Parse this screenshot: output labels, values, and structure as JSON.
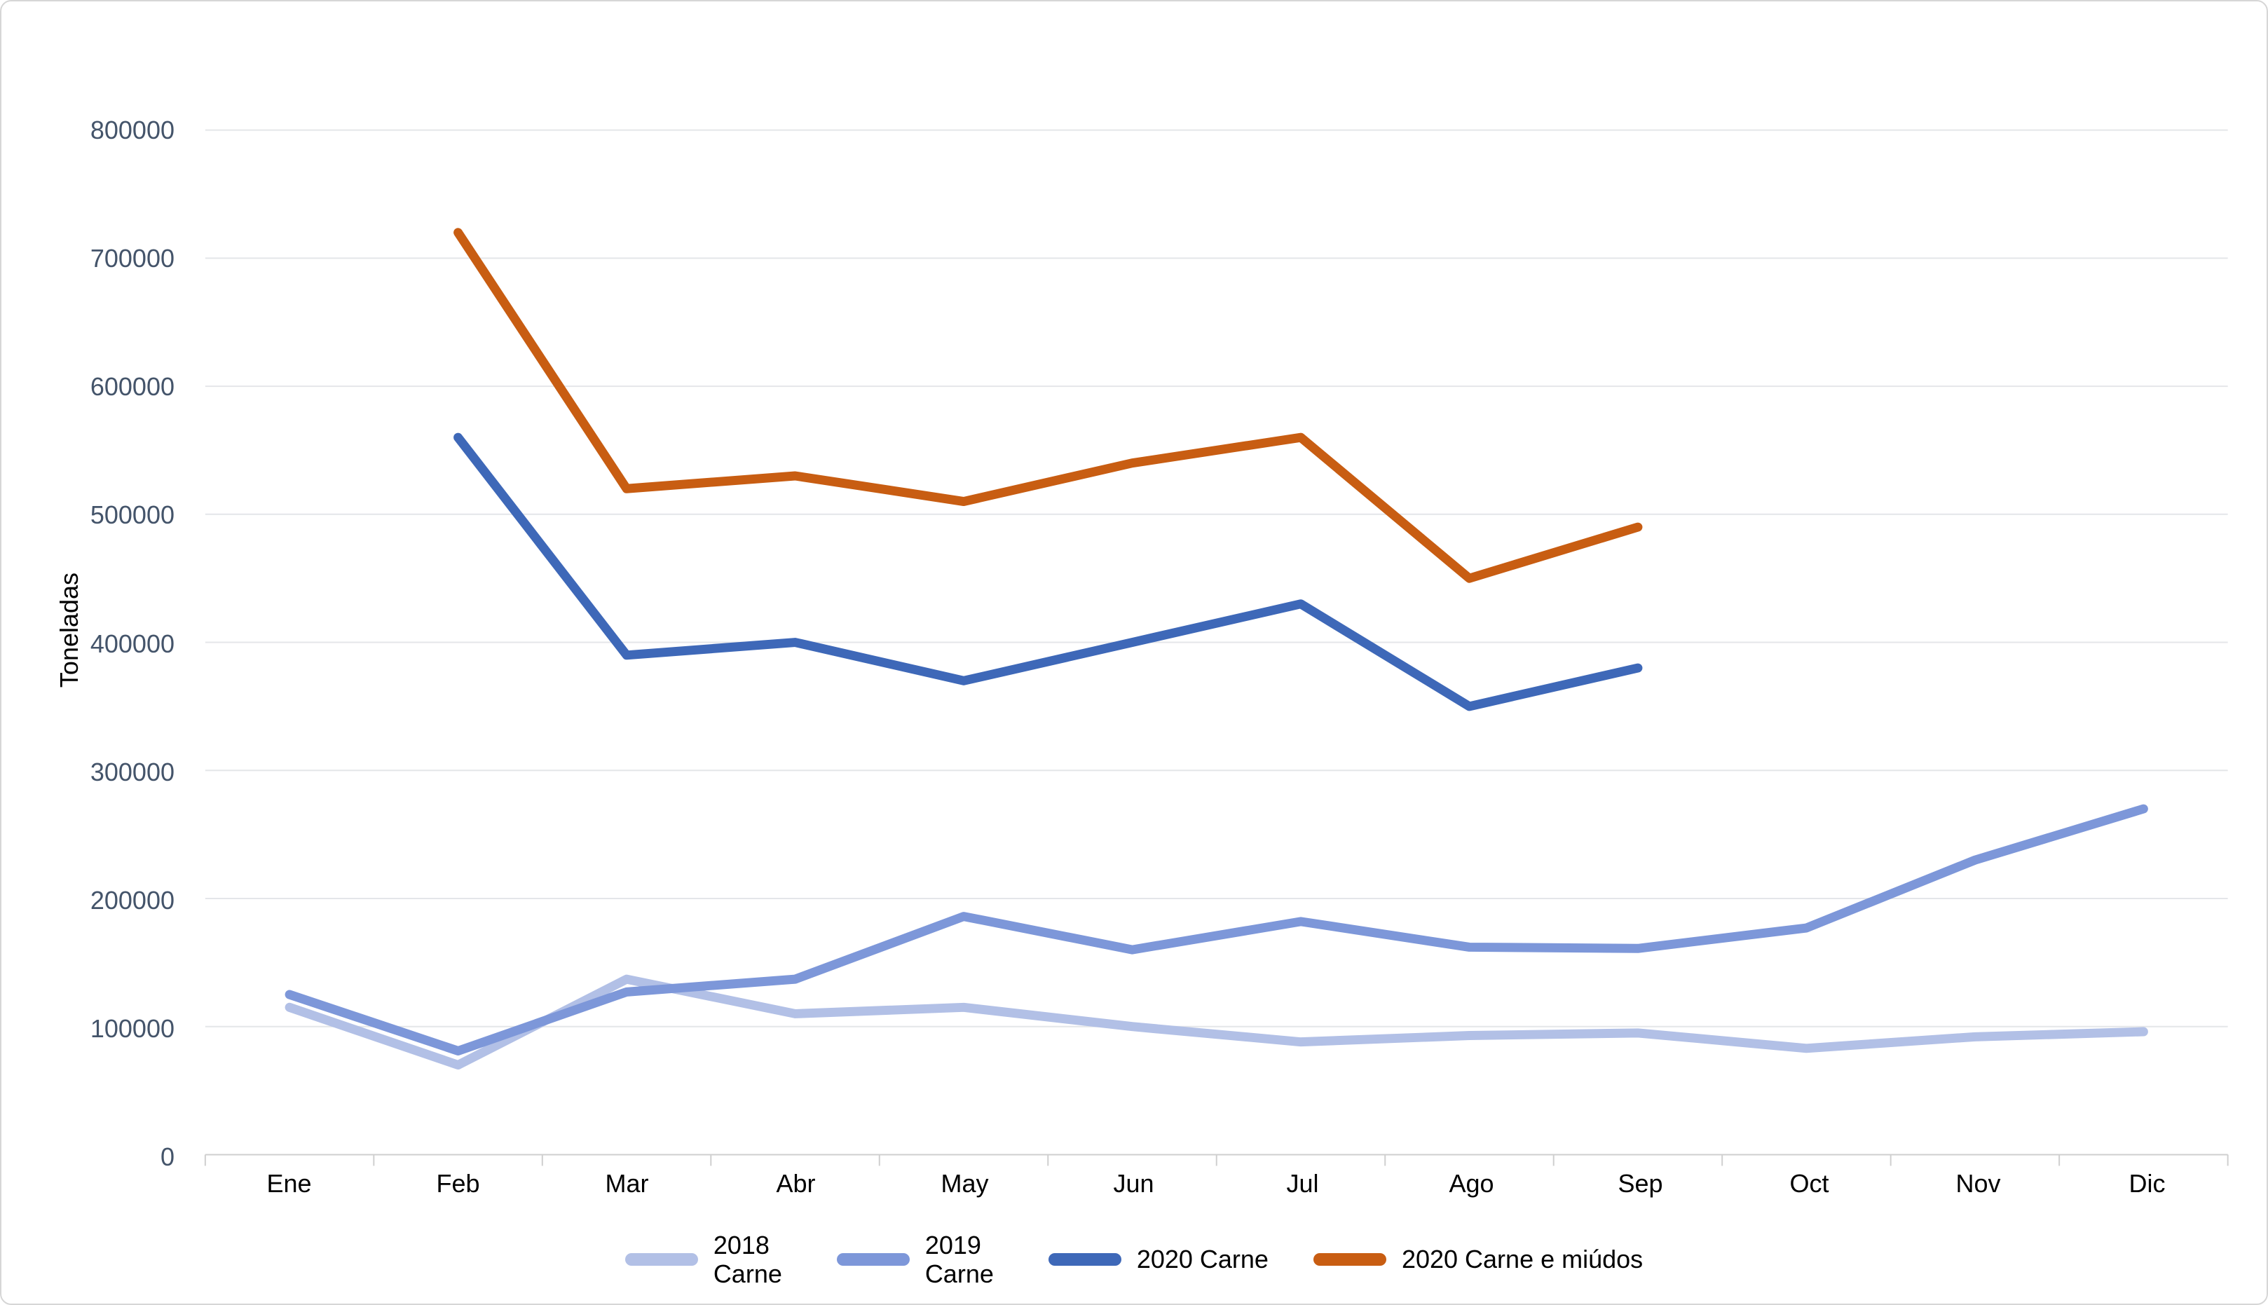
{
  "chart_data": {
    "type": "line",
    "title": "",
    "ylabel": "Toneladas",
    "xlabel": "",
    "categories": [
      "Ene",
      "Feb",
      "Mar",
      "Abr",
      "May",
      "Jun",
      "Jul",
      "Ago",
      "Sep",
      "Oct",
      "Nov",
      "Dic"
    ],
    "series": [
      {
        "name": "2018 Carne",
        "color": "#B2C0E6",
        "two_line_legend": true,
        "values": [
          115000,
          70000,
          137000,
          110000,
          115000,
          100000,
          88000,
          93000,
          95000,
          83000,
          92000,
          96000
        ]
      },
      {
        "name": "2019 Carne",
        "color": "#7D97D9",
        "two_line_legend": true,
        "values": [
          125000,
          81000,
          127000,
          137000,
          186000,
          160000,
          182000,
          162000,
          161000,
          177000,
          230000,
          270000
        ]
      },
      {
        "name": "2020 Carne",
        "color": "#3E68B8",
        "two_line_legend": false,
        "values": [
          null,
          560000,
          390000,
          400000,
          370000,
          400000,
          430000,
          350000,
          380000,
          null,
          null,
          null
        ]
      },
      {
        "name": "2020 Carne e miúdos",
        "color": "#C85D12",
        "two_line_legend": false,
        "values": [
          null,
          720000,
          520000,
          530000,
          510000,
          540000,
          560000,
          450000,
          490000,
          null,
          null,
          null
        ]
      }
    ],
    "y_axis": {
      "min": 0,
      "max": 800000,
      "step": 100000,
      "tick_labels": [
        "0",
        "100000",
        "200000",
        "300000",
        "400000",
        "500000",
        "600000",
        "700000",
        "800000"
      ]
    },
    "legend_position": "bottom",
    "grid": true
  },
  "colors": {
    "background": "#FFFFFF",
    "border": "#D6D6D6",
    "gridline": "#E4E6E9",
    "axis_line": "#CFCFCF",
    "tick_mark": "#CFCFCF",
    "y_tick_label": "#44546A",
    "x_tick_label": "#000000",
    "legend_text": "#000000"
  }
}
